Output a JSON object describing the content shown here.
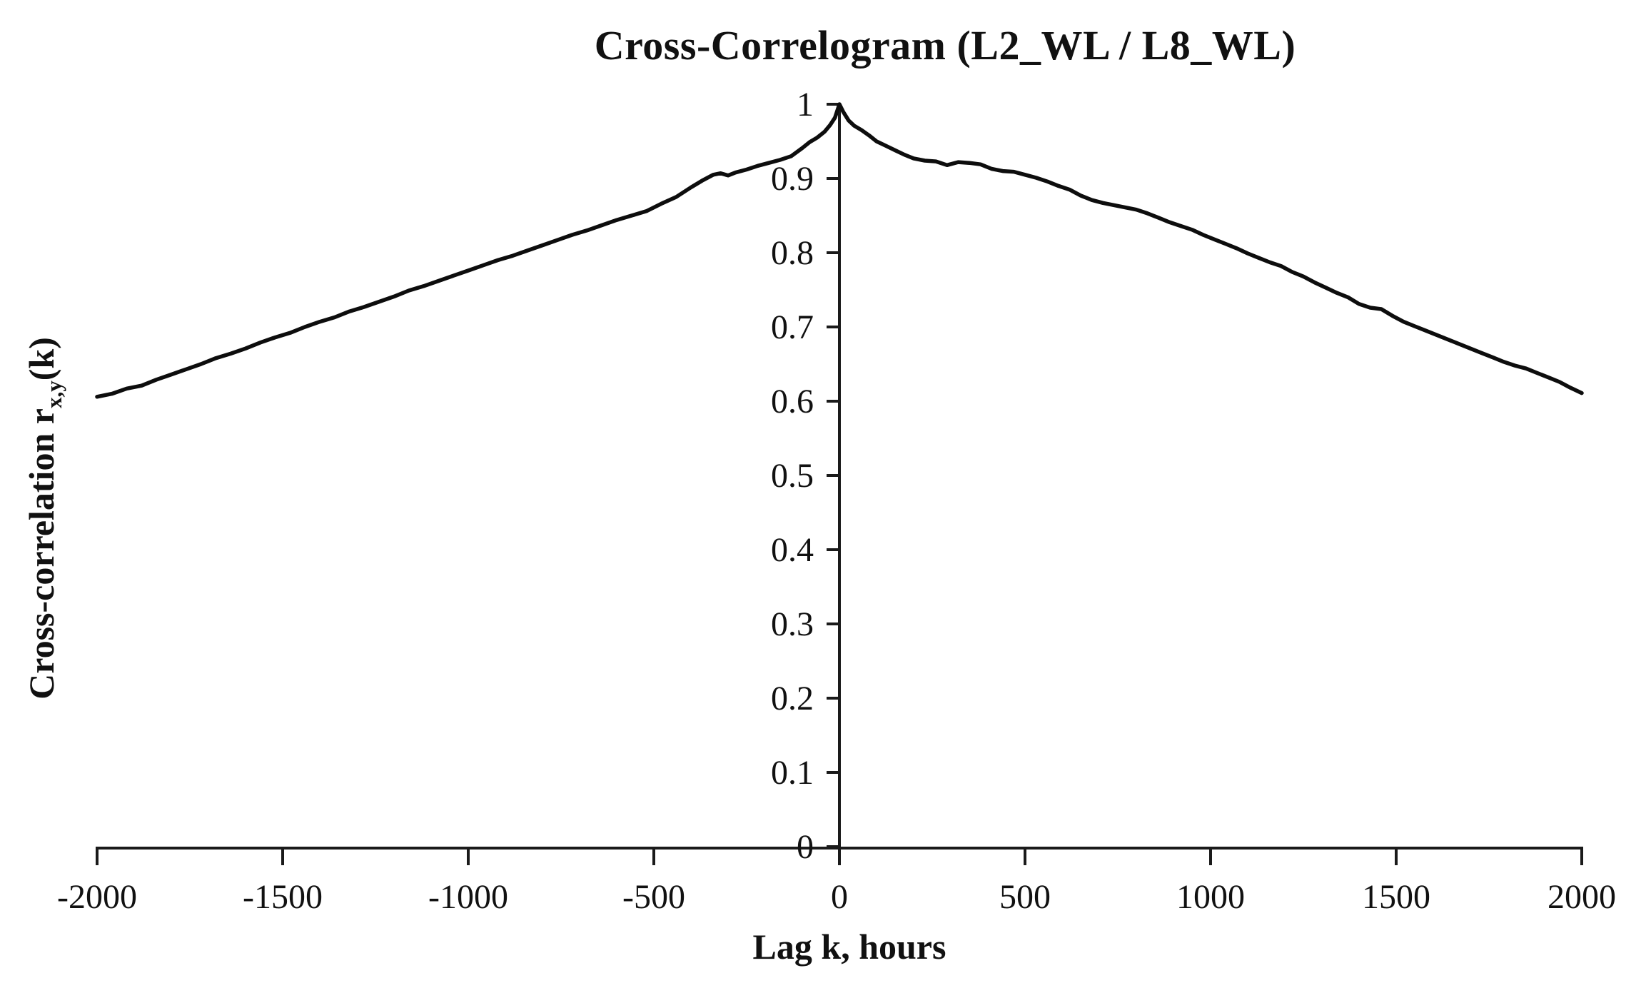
{
  "chart_data": {
    "type": "line",
    "title": "Cross-Correlogram (L2_WL / L8_WL)",
    "xlabel": "Lag k, hours",
    "ylabel": {
      "prefix": "Cross-correlation r",
      "sub": "x,y",
      "suffix": "(k)"
    },
    "xlim": [
      -2000,
      2000
    ],
    "ylim": [
      0,
      1
    ],
    "grid": false,
    "legend": "none",
    "axis_style": "y-axis-crosses-at-x-zero, ticks outside, no plot frame",
    "line_color": "#0d0d0d",
    "axis_color": "#1a1a1a",
    "x_ticks": [
      {
        "v": -2000,
        "label": "-2000"
      },
      {
        "v": -1500,
        "label": "-1500"
      },
      {
        "v": -1000,
        "label": "-1000"
      },
      {
        "v": -500,
        "label": "-500"
      },
      {
        "v": 0,
        "label": "0"
      },
      {
        "v": 500,
        "label": "500"
      },
      {
        "v": 1000,
        "label": "1000"
      },
      {
        "v": 1500,
        "label": "1500"
      },
      {
        "v": 2000,
        "label": "2000"
      }
    ],
    "y_ticks": [
      {
        "v": 0,
        "label": "0"
      },
      {
        "v": 0.1,
        "label": "0.1"
      },
      {
        "v": 0.2,
        "label": "0.2"
      },
      {
        "v": 0.3,
        "label": "0.3"
      },
      {
        "v": 0.4,
        "label": "0.4"
      },
      {
        "v": 0.5,
        "label": "0.5"
      },
      {
        "v": 0.6,
        "label": "0.6"
      },
      {
        "v": 0.7,
        "label": "0.7"
      },
      {
        "v": 0.8,
        "label": "0.8"
      },
      {
        "v": 0.9,
        "label": "0.9"
      },
      {
        "v": 1,
        "label": "1"
      }
    ],
    "series": [
      {
        "name": "cross-correlation r_x,y(k)",
        "points": [
          [
            -2000,
            0.606
          ],
          [
            -1960,
            0.61
          ],
          [
            -1920,
            0.617
          ],
          [
            -1880,
            0.621
          ],
          [
            -1840,
            0.629
          ],
          [
            -1800,
            0.636
          ],
          [
            -1760,
            0.643
          ],
          [
            -1720,
            0.65
          ],
          [
            -1680,
            0.658
          ],
          [
            -1640,
            0.664
          ],
          [
            -1600,
            0.671
          ],
          [
            -1560,
            0.679
          ],
          [
            -1520,
            0.686
          ],
          [
            -1480,
            0.692
          ],
          [
            -1440,
            0.7
          ],
          [
            -1400,
            0.707
          ],
          [
            -1360,
            0.713
          ],
          [
            -1320,
            0.721
          ],
          [
            -1280,
            0.727
          ],
          [
            -1240,
            0.734
          ],
          [
            -1200,
            0.741
          ],
          [
            -1160,
            0.749
          ],
          [
            -1120,
            0.755
          ],
          [
            -1080,
            0.762
          ],
          [
            -1040,
            0.769
          ],
          [
            -1000,
            0.776
          ],
          [
            -960,
            0.783
          ],
          [
            -920,
            0.79
          ],
          [
            -880,
            0.796
          ],
          [
            -840,
            0.803
          ],
          [
            -800,
            0.81
          ],
          [
            -760,
            0.817
          ],
          [
            -720,
            0.824
          ],
          [
            -680,
            0.83
          ],
          [
            -640,
            0.837
          ],
          [
            -600,
            0.844
          ],
          [
            -560,
            0.85
          ],
          [
            -520,
            0.856
          ],
          [
            -480,
            0.866
          ],
          [
            -440,
            0.875
          ],
          [
            -400,
            0.888
          ],
          [
            -370,
            0.897
          ],
          [
            -340,
            0.905
          ],
          [
            -320,
            0.907
          ],
          [
            -300,
            0.904
          ],
          [
            -280,
            0.908
          ],
          [
            -250,
            0.912
          ],
          [
            -220,
            0.917
          ],
          [
            -190,
            0.921
          ],
          [
            -160,
            0.925
          ],
          [
            -130,
            0.93
          ],
          [
            -100,
            0.941
          ],
          [
            -80,
            0.949
          ],
          [
            -60,
            0.955
          ],
          [
            -40,
            0.963
          ],
          [
            -25,
            0.972
          ],
          [
            -12,
            0.982
          ],
          [
            0,
            1.0
          ],
          [
            10,
            0.99
          ],
          [
            25,
            0.978
          ],
          [
            40,
            0.971
          ],
          [
            60,
            0.965
          ],
          [
            80,
            0.958
          ],
          [
            100,
            0.95
          ],
          [
            125,
            0.944
          ],
          [
            150,
            0.938
          ],
          [
            175,
            0.932
          ],
          [
            200,
            0.927
          ],
          [
            230,
            0.924
          ],
          [
            260,
            0.923
          ],
          [
            290,
            0.918
          ],
          [
            320,
            0.922
          ],
          [
            350,
            0.921
          ],
          [
            380,
            0.919
          ],
          [
            410,
            0.913
          ],
          [
            440,
            0.91
          ],
          [
            470,
            0.909
          ],
          [
            500,
            0.905
          ],
          [
            530,
            0.901
          ],
          [
            560,
            0.896
          ],
          [
            590,
            0.89
          ],
          [
            620,
            0.885
          ],
          [
            650,
            0.877
          ],
          [
            680,
            0.871
          ],
          [
            710,
            0.867
          ],
          [
            740,
            0.864
          ],
          [
            770,
            0.861
          ],
          [
            800,
            0.858
          ],
          [
            830,
            0.853
          ],
          [
            860,
            0.847
          ],
          [
            890,
            0.841
          ],
          [
            920,
            0.836
          ],
          [
            950,
            0.831
          ],
          [
            980,
            0.824
          ],
          [
            1010,
            0.818
          ],
          [
            1040,
            0.812
          ],
          [
            1070,
            0.806
          ],
          [
            1100,
            0.799
          ],
          [
            1130,
            0.793
          ],
          [
            1160,
            0.787
          ],
          [
            1190,
            0.782
          ],
          [
            1220,
            0.774
          ],
          [
            1250,
            0.768
          ],
          [
            1280,
            0.76
          ],
          [
            1310,
            0.753
          ],
          [
            1340,
            0.746
          ],
          [
            1370,
            0.74
          ],
          [
            1400,
            0.731
          ],
          [
            1430,
            0.726
          ],
          [
            1460,
            0.724
          ],
          [
            1490,
            0.715
          ],
          [
            1520,
            0.707
          ],
          [
            1550,
            0.701
          ],
          [
            1580,
            0.695
          ],
          [
            1610,
            0.689
          ],
          [
            1640,
            0.683
          ],
          [
            1670,
            0.677
          ],
          [
            1700,
            0.671
          ],
          [
            1730,
            0.665
          ],
          [
            1760,
            0.659
          ],
          [
            1790,
            0.653
          ],
          [
            1820,
            0.648
          ],
          [
            1850,
            0.644
          ],
          [
            1880,
            0.638
          ],
          [
            1910,
            0.632
          ],
          [
            1940,
            0.626
          ],
          [
            1970,
            0.618
          ],
          [
            2000,
            0.611
          ]
        ]
      }
    ]
  }
}
